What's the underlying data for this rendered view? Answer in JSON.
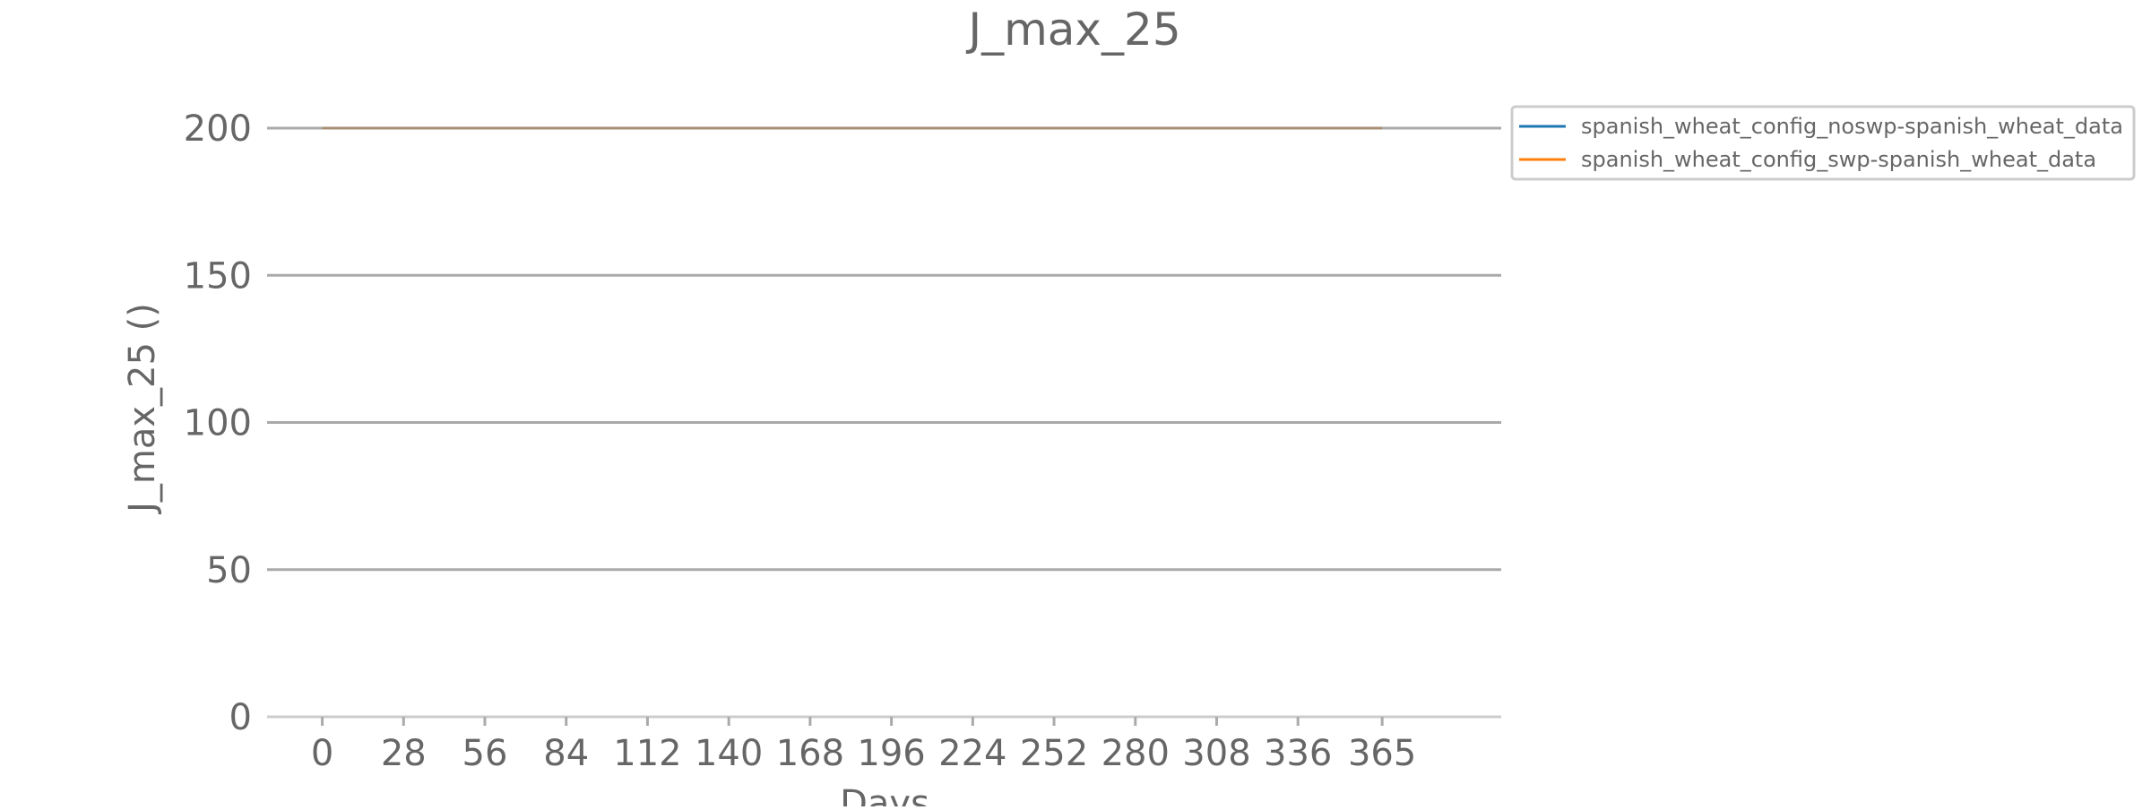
{
  "chart_data": {
    "type": "line",
    "title": "J_max_25",
    "xlabel": "Days",
    "ylabel": "J_max_25 ()",
    "x_ticks": [
      0,
      28,
      56,
      84,
      112,
      140,
      168,
      196,
      224,
      252,
      280,
      308,
      336,
      365
    ],
    "y_ticks": [
      0,
      50,
      100,
      150,
      200
    ],
    "xlim": [
      -19,
      406
    ],
    "ylim": [
      0,
      200
    ],
    "grid": "horizontal",
    "legend_position": "outside-top-right",
    "series": [
      {
        "name": "spanish_wheat_config_noswp-spanish_wheat_data",
        "color": "#1f77b4",
        "x": [
          0,
          365
        ],
        "y": [
          200,
          200
        ]
      },
      {
        "name": "spanish_wheat_config_swp-spanish_wheat_data",
        "color": "#ff7f0e",
        "x": [
          0,
          365
        ],
        "y": [
          200,
          200
        ]
      }
    ]
  }
}
